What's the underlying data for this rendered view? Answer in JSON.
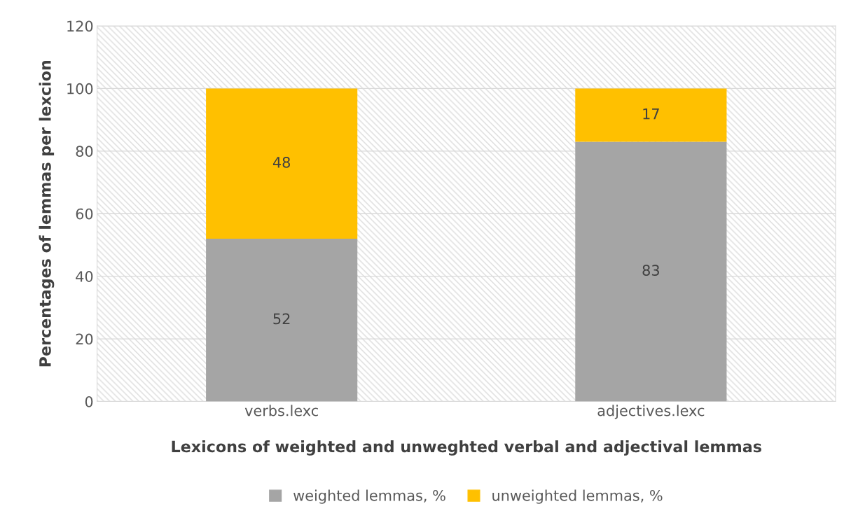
{
  "chart_data": {
    "type": "bar",
    "stacked": true,
    "xlabel": "Lexicons of weighted and unweghted verbal and adjectival lemmas",
    "ylabel": "Percentages of lemmas per lexcion",
    "categories": [
      "verbs.lexc",
      "adjectives.lexc"
    ],
    "series": [
      {
        "name": "weighted lemmas, %",
        "color": "#a5a5a5",
        "values": [
          52,
          83
        ]
      },
      {
        "name": "unweighted lemmas, %",
        "color": "#ffc000",
        "values": [
          48,
          17
        ]
      }
    ],
    "ylim": [
      0,
      120
    ],
    "yticks": [
      0,
      20,
      40,
      60,
      80,
      100,
      120
    ],
    "grid": "y",
    "legend": "bottom",
    "data_labels": true
  }
}
